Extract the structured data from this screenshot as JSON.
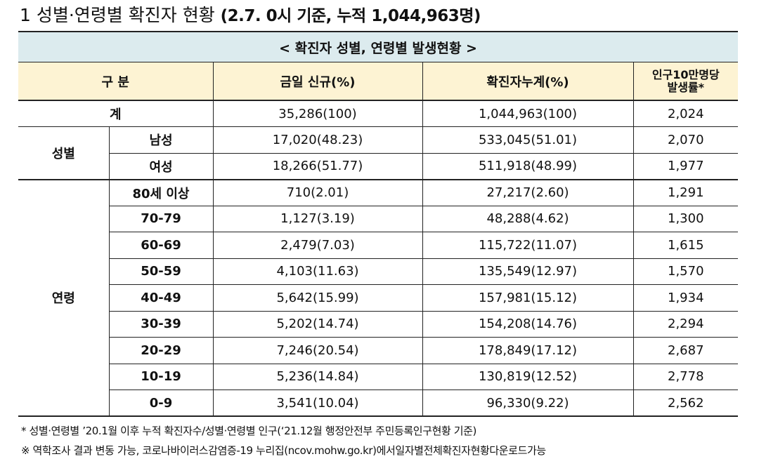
{
  "title": {
    "number": "1",
    "main": "성별·연령별 확진자 현황",
    "sub": "(2.7. 0시 기준, 누적 1,044,963명)"
  },
  "table": {
    "caption": "< 확진자 성별, 연령별 발생현황 >",
    "headers": {
      "category": "구 분",
      "today": "금일 신규(%)",
      "cumulative": "확진자누계(%)",
      "rate_line1": "인구10만명당",
      "rate_line2": "발생률*"
    },
    "total": {
      "label": "계",
      "today": "35,286(100)",
      "cumulative": "1,044,963(100)",
      "rate": "2,024"
    },
    "sex": {
      "group_label": "성별",
      "rows": [
        {
          "label": "남성",
          "today": "17,020(48.23)",
          "cumulative": "533,045(51.01)",
          "rate": "2,070"
        },
        {
          "label": "여성",
          "today": "18,266(51.77)",
          "cumulative": "511,918(48.99)",
          "rate": "1,977"
        }
      ]
    },
    "age": {
      "group_label": "연령",
      "rows": [
        {
          "label": "80세 이상",
          "today": "710(2.01)",
          "cumulative": "27,217(2.60)",
          "rate": "1,291"
        },
        {
          "label": "70-79",
          "today": "1,127(3.19)",
          "cumulative": "48,288(4.62)",
          "rate": "1,300"
        },
        {
          "label": "60-69",
          "today": "2,479(7.03)",
          "cumulative": "115,722(11.07)",
          "rate": "1,615"
        },
        {
          "label": "50-59",
          "today": "4,103(11.63)",
          "cumulative": "135,549(12.97)",
          "rate": "1,570"
        },
        {
          "label": "40-49",
          "today": "5,642(15.99)",
          "cumulative": "157,981(15.12)",
          "rate": "1,934"
        },
        {
          "label": "30-39",
          "today": "5,202(14.74)",
          "cumulative": "154,208(14.76)",
          "rate": "2,294"
        },
        {
          "label": "20-29",
          "today": "7,246(20.54)",
          "cumulative": "178,849(17.12)",
          "rate": "2,687"
        },
        {
          "label": "10-19",
          "today": "5,236(14.84)",
          "cumulative": "130,819(12.52)",
          "rate": "2,778"
        },
        {
          "label": "0-9",
          "today": "3,541(10.04)",
          "cumulative": "96,330(9.22)",
          "rate": "2,562"
        }
      ]
    }
  },
  "notes": {
    "note1": "* 성별·연령별 ’20.1월 이후 누적 확진자수/성별·연령별 인구(‘21.12월 행정안전부 주민등록인구현황 기준)",
    "note2": "※ 역학조사 결과 변동 가능, 코로나바이러스감염증-19 누리집(ncov.mohw.go.kr)에서일자별전체확진자현황다운로드가능"
  }
}
